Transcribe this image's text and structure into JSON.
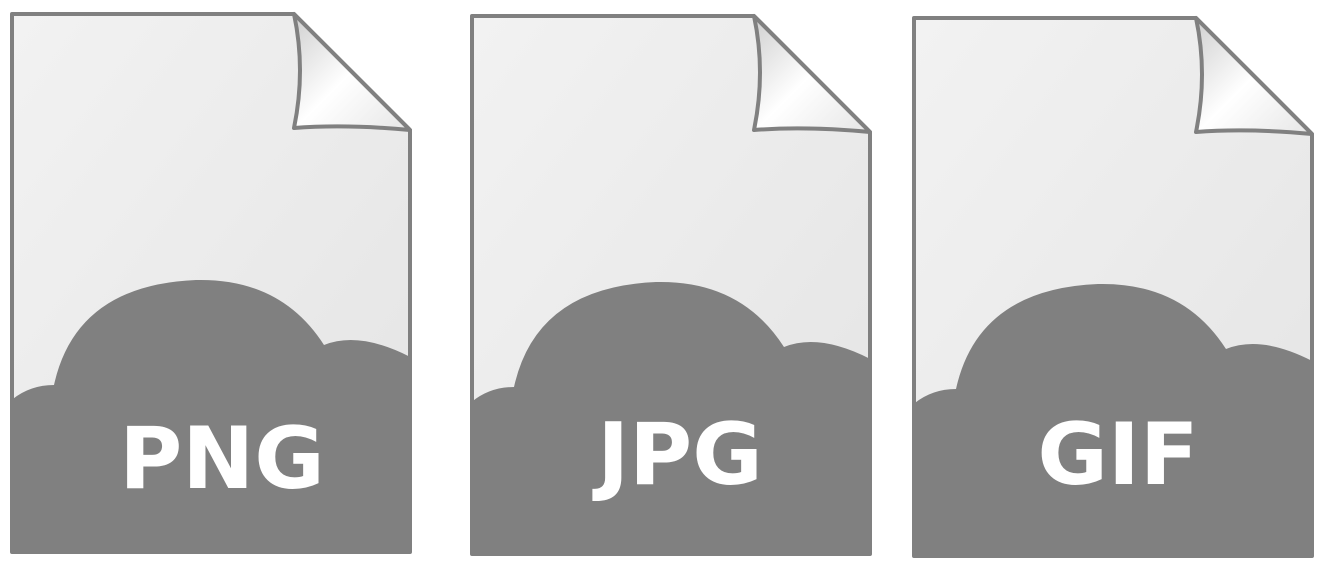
{
  "icons": [
    {
      "label": "PNG",
      "type_icon": "image-file-icon"
    },
    {
      "label": "JPG",
      "type_icon": "image-file-icon"
    },
    {
      "label": "GIF",
      "type_icon": "image-file-icon"
    }
  ],
  "colors": {
    "page_fill_top": "#f2f2f2",
    "page_fill_bottom": "#e6e6e6",
    "outline": "#808080",
    "cloud": "#808080",
    "label_text": "#ffffff"
  }
}
